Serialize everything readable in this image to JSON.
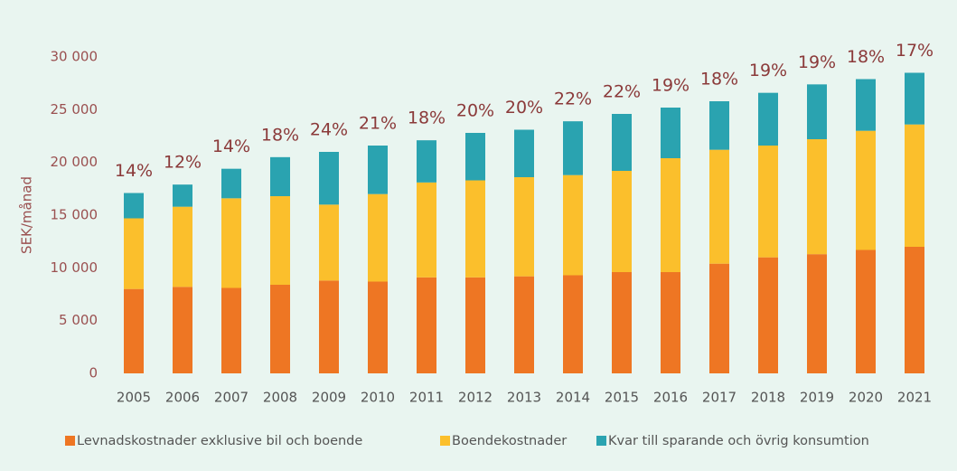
{
  "chart_data": {
    "type": "stacked-bar",
    "y_label": "SEK/månad",
    "categories": [
      "2005",
      "2006",
      "2007",
      "2008",
      "2009",
      "2010",
      "2011",
      "2012",
      "2013",
      "2014",
      "2015",
      "2016",
      "2017",
      "2018",
      "2019",
      "2020",
      "2021"
    ],
    "series": [
      {
        "name": "Levnadskostnader exklusive bil och boende",
        "color": "#ee7623",
        "values": [
          8000,
          8200,
          8100,
          8400,
          8800,
          8700,
          9100,
          9100,
          9200,
          9300,
          9600,
          9600,
          10400,
          11000,
          11300,
          11700,
          12000
        ]
      },
      {
        "name": "Boendekostnader",
        "color": "#fbbf2c",
        "values": [
          6700,
          7600,
          8500,
          8400,
          7200,
          8300,
          9000,
          9200,
          9400,
          9500,
          9600,
          10800,
          10800,
          10600,
          10900,
          11300,
          11600
        ]
      },
      {
        "name": "Kvar till sparande och övrig konsumtion",
        "color": "#2aa3b0",
        "values": [
          2400,
          2100,
          2800,
          3700,
          5000,
          4600,
          4000,
          4500,
          4500,
          5100,
          5400,
          4800,
          4600,
          5000,
          5200,
          4900,
          4900
        ]
      }
    ],
    "annotations": [
      "14%",
      "12%",
      "14%",
      "18%",
      "24%",
      "21%",
      "18%",
      "20%",
      "20%",
      "22%",
      "22%",
      "19%",
      "18%",
      "19%",
      "19%",
      "18%",
      "17%"
    ],
    "ylim": [
      0,
      30000
    ],
    "yticks": [
      0,
      {
        "value": 5000,
        "label": "5 000"
      },
      {
        "value": 10000,
        "label": "10 000"
      },
      {
        "value": 15000,
        "label": "15 000"
      },
      {
        "value": 20000,
        "label": "20 000"
      },
      {
        "value": 25000,
        "label": "25 000"
      },
      {
        "value": 30000,
        "label": "30 000"
      }
    ],
    "grid": false
  }
}
